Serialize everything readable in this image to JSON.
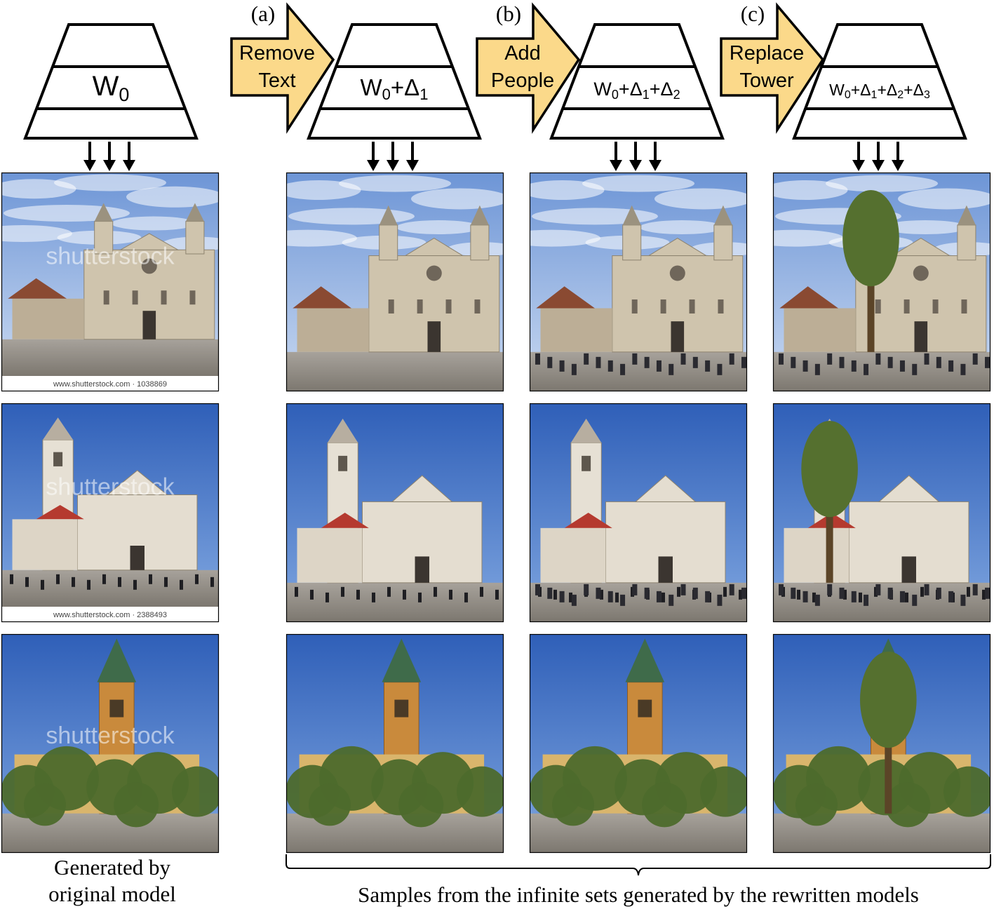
{
  "columns": [
    {
      "model_label": "W0",
      "model_parts": [
        [
          "W",
          ""
        ],
        [
          "0",
          "sub"
        ]
      ],
      "step_letter": "",
      "step_lines": [],
      "images": [
        {
          "watermark": "shutterstock",
          "caption_strip": "www.shutterstock.com · 1038869"
        },
        {
          "watermark": "shutterstock",
          "caption_strip": "www.shutterstock.com · 2388493"
        },
        {
          "watermark": "shutterstock",
          "caption_strip": ""
        }
      ]
    },
    {
      "model_label": "W0+Δ1",
      "model_parts": [
        [
          "W",
          ""
        ],
        [
          "0",
          "sub"
        ],
        [
          "+Δ",
          ""
        ],
        [
          "1",
          "sub"
        ]
      ],
      "step_letter": "(a)",
      "step_lines": [
        "Remove",
        "Text"
      ],
      "images": [
        {
          "watermark": "",
          "caption_strip": ""
        },
        {
          "watermark": "",
          "caption_strip": ""
        },
        {
          "watermark": "",
          "caption_strip": ""
        }
      ]
    },
    {
      "model_label": "W0+Δ1+Δ2",
      "model_parts": [
        [
          "W",
          ""
        ],
        [
          "0",
          "sub"
        ],
        [
          "+Δ",
          ""
        ],
        [
          "1",
          "sub"
        ],
        [
          "+Δ",
          ""
        ],
        [
          "2",
          "sub"
        ]
      ],
      "step_letter": "(b)",
      "step_lines": [
        "Add",
        "People"
      ],
      "images": [
        {
          "watermark": "",
          "caption_strip": ""
        },
        {
          "watermark": "",
          "caption_strip": ""
        },
        {
          "watermark": "",
          "caption_strip": ""
        }
      ]
    },
    {
      "model_label": "W0+Δ1+Δ2+Δ3",
      "model_parts": [
        [
          "W",
          ""
        ],
        [
          "0",
          "sub"
        ],
        [
          "+Δ",
          ""
        ],
        [
          "1",
          "sub"
        ],
        [
          "+Δ",
          ""
        ],
        [
          "2",
          "sub"
        ],
        [
          "+Δ",
          ""
        ],
        [
          "3",
          "sub"
        ]
      ],
      "step_letter": "(c)",
      "step_lines": [
        "Replace",
        "Tower"
      ],
      "images": [
        {
          "watermark": "",
          "caption_strip": ""
        },
        {
          "watermark": "",
          "caption_strip": ""
        },
        {
          "watermark": "",
          "caption_strip": ""
        }
      ]
    }
  ],
  "captions": {
    "original_line1": "Generated by",
    "original_line2": "original model",
    "rewritten": "Samples from the infinite sets generated by the rewritten models"
  },
  "colors": {
    "arrow_fill": "#fbd98a",
    "stroke": "#000000",
    "sky_top": "#3f6fc4",
    "sky_bottom": "#a9c4ec",
    "stone": "#cfc4ad",
    "brick": "#c98a3c",
    "tree": "#4d6a2c",
    "ground": "#9a958e"
  }
}
